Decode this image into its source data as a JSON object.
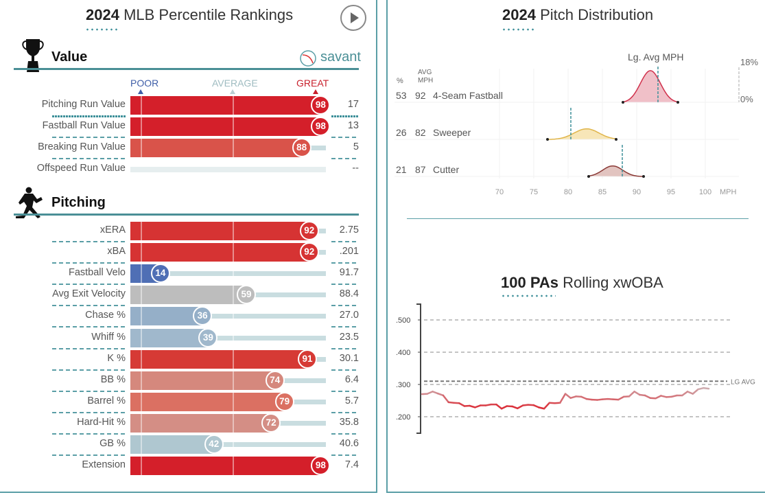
{
  "left": {
    "title_bold": "2024",
    "title_rest": " MLB Percentile Rankings",
    "play_icon": "play-circle-icon",
    "value_section": {
      "title": "Value",
      "icon": "trophy-icon",
      "brand": "savant",
      "brand_icon": "baseball-icon"
    },
    "scale": {
      "poor": "POOR",
      "average": "AVERAGE",
      "great": "GREAT",
      "poor_color": "#3f5ea8",
      "average_color": "#b9cfd3",
      "great_color": "#c8202c"
    },
    "value_rows": [
      {
        "label": "Pitching Run Value",
        "percentile": 98,
        "value": "17",
        "color": "#d41f2a"
      },
      {
        "label": "Fastball Run Value",
        "percentile": 98,
        "value": "13",
        "color": "#d41f2a"
      },
      {
        "label": "Breaking Run Value",
        "percentile": 88,
        "value": "5",
        "color": "#d9534a"
      },
      {
        "label": "Offspeed Run Value",
        "percentile": null,
        "value": "--",
        "color": "#e6eeef"
      }
    ],
    "pitching_section": {
      "title": "Pitching",
      "icon": "pitcher-icon"
    },
    "pitching_rows": [
      {
        "label": "xERA",
        "percentile": 92,
        "value": "2.75",
        "color": "#d63333"
      },
      {
        "label": "xBA",
        "percentile": 92,
        "value": ".201",
        "color": "#d63333"
      },
      {
        "label": "Fastball Velo",
        "percentile": 14,
        "value": "91.7",
        "color": "#4f6fb5"
      },
      {
        "label": "Avg Exit Velocity",
        "percentile": 59,
        "value": "88.4",
        "color": "#bdbdbd"
      },
      {
        "label": "Chase %",
        "percentile": 36,
        "value": "27.0",
        "color": "#95afc8"
      },
      {
        "label": "Whiff %",
        "percentile": 39,
        "value": "23.5",
        "color": "#a0b8cc"
      },
      {
        "label": "K %",
        "percentile": 91,
        "value": "30.1",
        "color": "#d63a35"
      },
      {
        "label": "BB %",
        "percentile": 74,
        "value": "6.4",
        "color": "#d5887d"
      },
      {
        "label": "Barrel %",
        "percentile": 79,
        "value": "5.7",
        "color": "#db7062"
      },
      {
        "label": "Hard-Hit %",
        "percentile": 72,
        "value": "35.8",
        "color": "#d48e85"
      },
      {
        "label": "GB %",
        "percentile": 42,
        "value": "40.6",
        "color": "#afc7d0"
      },
      {
        "label": "Extension",
        "percentile": 98,
        "value": "7.4",
        "color": "#d41f2a"
      }
    ]
  },
  "chart_data": [
    {
      "type": "area",
      "title_bold": "2024",
      "title_rest": " Pitch Distribution",
      "col_pct": "%",
      "col_avg": "AVG",
      "col_mph": "MPH",
      "avg_label": "Lg. Avg MPH",
      "density_max": "18%",
      "density_min": "0%",
      "xlabel": "MPH",
      "xticks": [
        70,
        75,
        80,
        85,
        90,
        95,
        100
      ],
      "xlim": [
        65,
        103
      ],
      "series": [
        {
          "name": "4-Seam Fastball",
          "pct": "53",
          "avg": "92",
          "min": 88,
          "max": 96,
          "peak": 92,
          "peak_density": 16.5,
          "lg_avg": 93.1,
          "color": "#d0304b",
          "fill": "#f0c0c8"
        },
        {
          "name": "Sweeper",
          "pct": "26",
          "avg": "82",
          "min": 77,
          "max": 87,
          "peak": 82.7,
          "peak_density": 5.5,
          "lg_avg": 80.4,
          "color": "#e0b54a",
          "fill": "#f7e6b8"
        },
        {
          "name": "Cutter",
          "pct": "21",
          "avg": "87",
          "min": 83,
          "max": 91,
          "peak": 86.5,
          "peak_density": 5.5,
          "lg_avg": 87.9,
          "color": "#8a3a36",
          "fill": "#e2c4c0"
        }
      ]
    },
    {
      "type": "line",
      "title_bold": "100 PAs",
      "title_rest": " Rolling xwOBA",
      "yticks": [
        ".500",
        ".400",
        ".300",
        ".200"
      ],
      "ylim": [
        0.15,
        0.55
      ],
      "lg_avg": 0.31,
      "lg_avg_label": "LG AVG",
      "values": [
        0.27,
        0.271,
        0.278,
        0.272,
        0.266,
        0.245,
        0.243,
        0.242,
        0.233,
        0.234,
        0.229,
        0.235,
        0.235,
        0.238,
        0.238,
        0.225,
        0.233,
        0.232,
        0.226,
        0.235,
        0.237,
        0.236,
        0.229,
        0.225,
        0.243,
        0.242,
        0.243,
        0.271,
        0.258,
        0.263,
        0.262,
        0.255,
        0.253,
        0.252,
        0.254,
        0.255,
        0.254,
        0.253,
        0.262,
        0.263,
        0.278,
        0.268,
        0.266,
        0.258,
        0.257,
        0.265,
        0.261,
        0.262,
        0.266,
        0.266,
        0.278,
        0.271,
        0.285,
        0.289,
        0.287
      ]
    }
  ]
}
